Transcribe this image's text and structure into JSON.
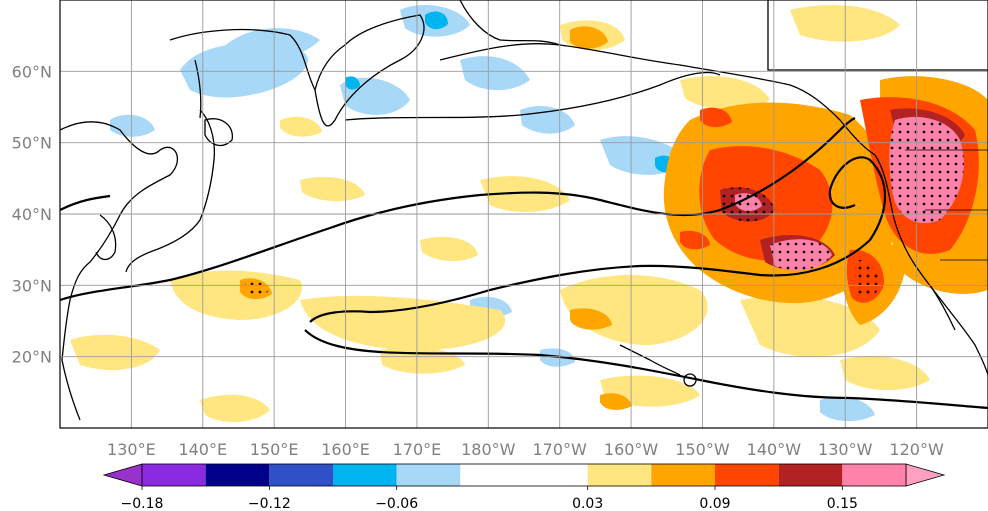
{
  "map": {
    "projection": "PlateCarree",
    "lon_range": [
      120,
      250
    ],
    "lat_range": [
      10,
      70
    ],
    "lon_ticks": [
      {
        "lon": 130,
        "label": "130°E"
      },
      {
        "lon": 140,
        "label": "140°E"
      },
      {
        "lon": 150,
        "label": "150°E"
      },
      {
        "lon": 160,
        "label": "160°E"
      },
      {
        "lon": 170,
        "label": "170°E"
      },
      {
        "lon": 180,
        "label": "180°W"
      },
      {
        "lon": 190,
        "label": "170°W"
      },
      {
        "lon": 200,
        "label": "160°W"
      },
      {
        "lon": 210,
        "label": "150°W"
      },
      {
        "lon": 220,
        "label": "140°W"
      },
      {
        "lon": 230,
        "label": "130°W"
      },
      {
        "lon": 240,
        "label": "120°W"
      }
    ],
    "lat_ticks": [
      {
        "lat": 20,
        "label": "20°N"
      },
      {
        "lat": 30,
        "label": "30°N"
      },
      {
        "lat": 40,
        "label": "40°N"
      },
      {
        "lat": 50,
        "label": "50°N"
      },
      {
        "lat": 60,
        "label": "60°N"
      }
    ],
    "gridlines": true,
    "stippling": "significance dots over high positive anomalies",
    "contour_lines": "black climatological contours"
  },
  "colorbar": {
    "orientation": "horizontal",
    "extend": "both",
    "levels": [
      -0.18,
      -0.15,
      -0.12,
      -0.09,
      -0.06,
      -0.03,
      0.03,
      0.06,
      0.09,
      0.12,
      0.15,
      0.18
    ],
    "colors": [
      "#8a2be2",
      "#00008b",
      "#3050c8",
      "#00b4f0",
      "#a8d8f8",
      "#ffffff",
      "#ffe680",
      "#ffa500",
      "#ff4500",
      "#b22222",
      "#ff82ab"
    ],
    "under_color": "#9932cc",
    "over_color": "#ffa0c0",
    "tick_labels": [
      {
        "value": -0.18,
        "label": "−0.18"
      },
      {
        "value": -0.12,
        "label": "−0.12"
      },
      {
        "value": -0.06,
        "label": "−0.06"
      },
      {
        "value": 0.03,
        "label": "0.03"
      },
      {
        "value": 0.09,
        "label": "0.09"
      },
      {
        "value": 0.15,
        "label": "0.15"
      }
    ]
  }
}
